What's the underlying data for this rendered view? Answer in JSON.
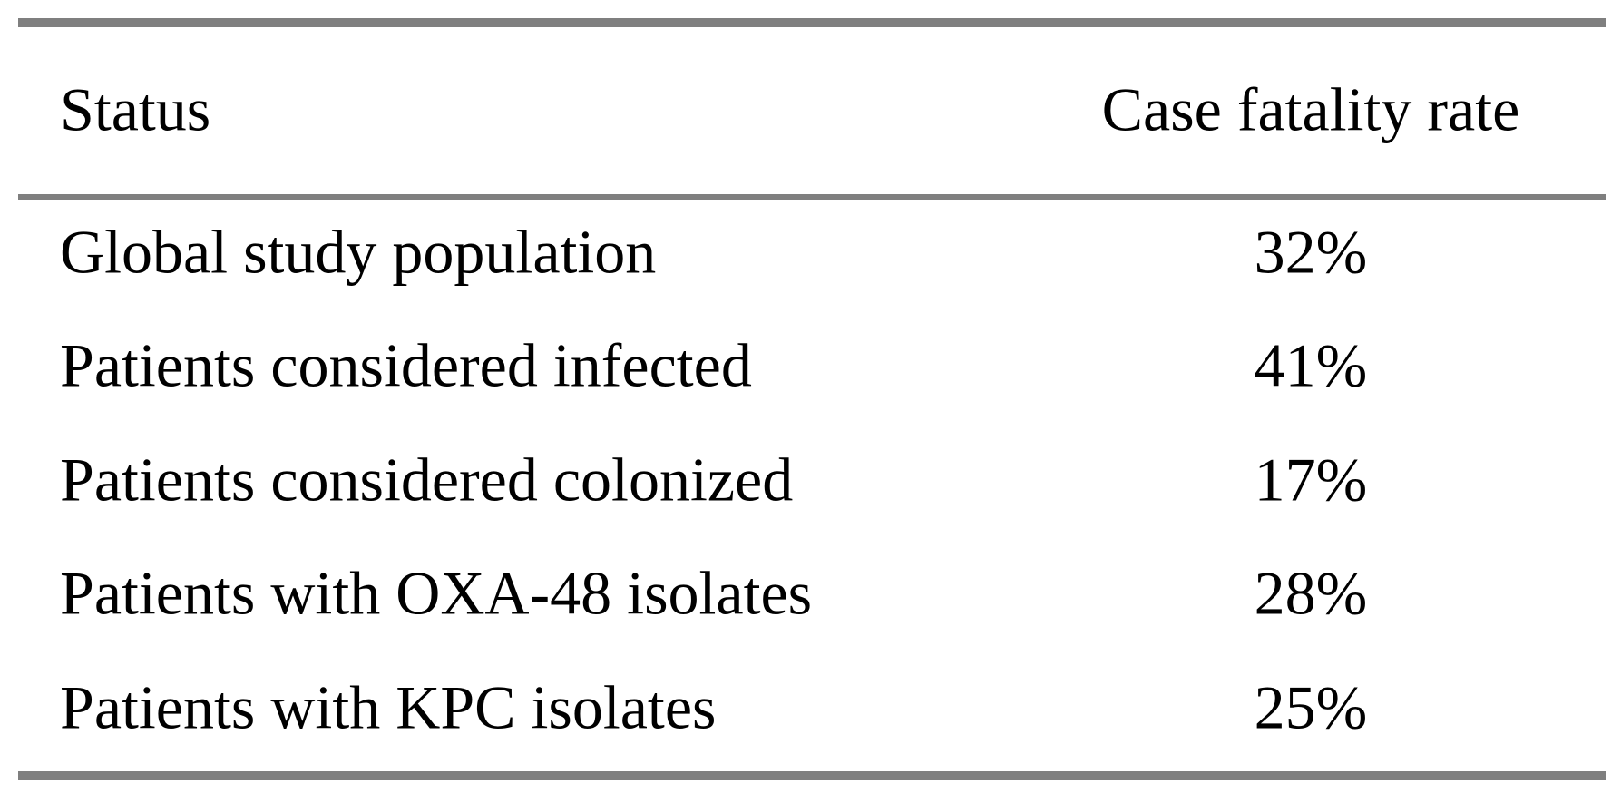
{
  "table": {
    "header": [
      "Status",
      "Case fatality rate"
    ],
    "rows": [
      [
        "Global study population",
        "32%"
      ],
      [
        "Patients considered infected",
        "41%"
      ],
      [
        "Patients considered colonized",
        "17%"
      ],
      [
        "Patients with OXA-48 isolates",
        "28%"
      ],
      [
        "Patients with KPC isolates",
        "25%"
      ]
    ]
  }
}
